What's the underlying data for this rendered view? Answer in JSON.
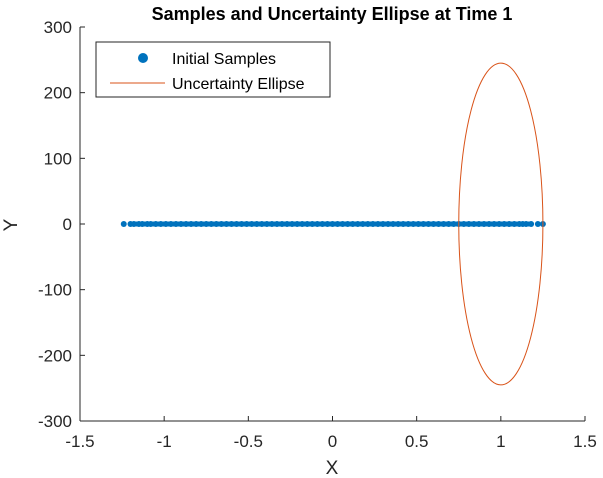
{
  "chart_data": {
    "type": "scatter",
    "title": "Samples and Uncertainty Ellipse at Time 1",
    "xlabel": "X",
    "ylabel": "Y",
    "xlim": [
      -1.5,
      1.5
    ],
    "ylim": [
      -300,
      300
    ],
    "xticks": [
      -1.5,
      -1,
      -0.5,
      0,
      0.5,
      1,
      1.5
    ],
    "xtick_labels": [
      "-1.5",
      "-1",
      "-0.5",
      "0",
      "0.5",
      "1",
      "1.5"
    ],
    "yticks": [
      -300,
      -200,
      -100,
      0,
      100,
      200,
      300
    ],
    "ytick_labels": [
      "-300",
      "-200",
      "-100",
      "0",
      "100",
      "200",
      "300"
    ],
    "grid": false,
    "legend_position": "top-left",
    "series": [
      {
        "name": "Initial Samples",
        "kind": "scatter",
        "color": "#0072BD",
        "x_range": [
          -1.25,
          1.25
        ],
        "y_value": 0,
        "points": [
          [
            -1.24,
            0
          ],
          [
            -1.2,
            0
          ],
          [
            -1.18,
            0
          ],
          [
            -1.15,
            0
          ],
          [
            -1.13,
            0
          ],
          [
            -1.1,
            0
          ],
          [
            -1.08,
            0
          ],
          [
            -1.05,
            0
          ],
          [
            -1.02,
            0
          ],
          [
            -0.99,
            0
          ],
          [
            -0.96,
            0
          ],
          [
            -0.93,
            0
          ],
          [
            -0.9,
            0
          ],
          [
            -0.87,
            0
          ],
          [
            -0.84,
            0
          ],
          [
            -0.81,
            0
          ],
          [
            -0.78,
            0
          ],
          [
            -0.75,
            0
          ],
          [
            -0.72,
            0
          ],
          [
            -0.69,
            0
          ],
          [
            -0.66,
            0
          ],
          [
            -0.63,
            0
          ],
          [
            -0.6,
            0
          ],
          [
            -0.57,
            0
          ],
          [
            -0.54,
            0
          ],
          [
            -0.51,
            0
          ],
          [
            -0.48,
            0
          ],
          [
            -0.45,
            0
          ],
          [
            -0.42,
            0
          ],
          [
            -0.39,
            0
          ],
          [
            -0.36,
            0
          ],
          [
            -0.33,
            0
          ],
          [
            -0.3,
            0
          ],
          [
            -0.27,
            0
          ],
          [
            -0.24,
            0
          ],
          [
            -0.21,
            0
          ],
          [
            -0.18,
            0
          ],
          [
            -0.15,
            0
          ],
          [
            -0.12,
            0
          ],
          [
            -0.09,
            0
          ],
          [
            -0.06,
            0
          ],
          [
            -0.03,
            0
          ],
          [
            0,
            0
          ],
          [
            0.03,
            0
          ],
          [
            0.06,
            0
          ],
          [
            0.09,
            0
          ],
          [
            0.12,
            0
          ],
          [
            0.15,
            0
          ],
          [
            0.18,
            0
          ],
          [
            0.21,
            0
          ],
          [
            0.24,
            0
          ],
          [
            0.27,
            0
          ],
          [
            0.3,
            0
          ],
          [
            0.33,
            0
          ],
          [
            0.36,
            0
          ],
          [
            0.39,
            0
          ],
          [
            0.42,
            0
          ],
          [
            0.45,
            0
          ],
          [
            0.48,
            0
          ],
          [
            0.51,
            0
          ],
          [
            0.54,
            0
          ],
          [
            0.57,
            0
          ],
          [
            0.6,
            0
          ],
          [
            0.63,
            0
          ],
          [
            0.66,
            0
          ],
          [
            0.69,
            0
          ],
          [
            0.72,
            0
          ],
          [
            0.75,
            0
          ],
          [
            0.78,
            0
          ],
          [
            0.81,
            0
          ],
          [
            0.84,
            0
          ],
          [
            0.87,
            0
          ],
          [
            0.9,
            0
          ],
          [
            0.93,
            0
          ],
          [
            0.96,
            0
          ],
          [
            0.99,
            0
          ],
          [
            1.02,
            0
          ],
          [
            1.05,
            0
          ],
          [
            1.08,
            0
          ],
          [
            1.11,
            0
          ],
          [
            1.13,
            0
          ],
          [
            1.15,
            0
          ],
          [
            1.18,
            0
          ],
          [
            1.22,
            0
          ],
          [
            1.25,
            0
          ]
        ]
      },
      {
        "name": "Uncertainty Ellipse",
        "kind": "line",
        "color": "#D95319",
        "center": [
          1.0,
          0
        ],
        "semi_axes": [
          0.25,
          245
        ]
      }
    ]
  }
}
